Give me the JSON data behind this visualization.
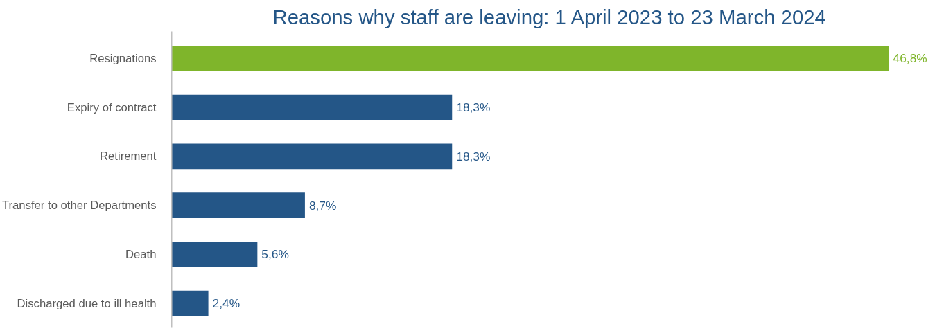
{
  "chart_data": {
    "type": "bar",
    "orientation": "horizontal",
    "title": "Reasons why staff are leaving: 1 April 2023 to 23 March 2024",
    "categories": [
      "Resignations",
      "Expiry of contract",
      "Retirement",
      "Transfer to other Departments",
      "Death",
      "Discharged due to ill health"
    ],
    "values": [
      46.8,
      18.3,
      18.3,
      8.7,
      5.6,
      2.4
    ],
    "value_labels": [
      "46,8%",
      "18,3%",
      "18,3%",
      "8,7%",
      "5,6%",
      "2,4%"
    ],
    "colors": [
      "#7fb52b",
      "#245687",
      "#245687",
      "#245687",
      "#245687",
      "#245687"
    ],
    "grid": false
  }
}
